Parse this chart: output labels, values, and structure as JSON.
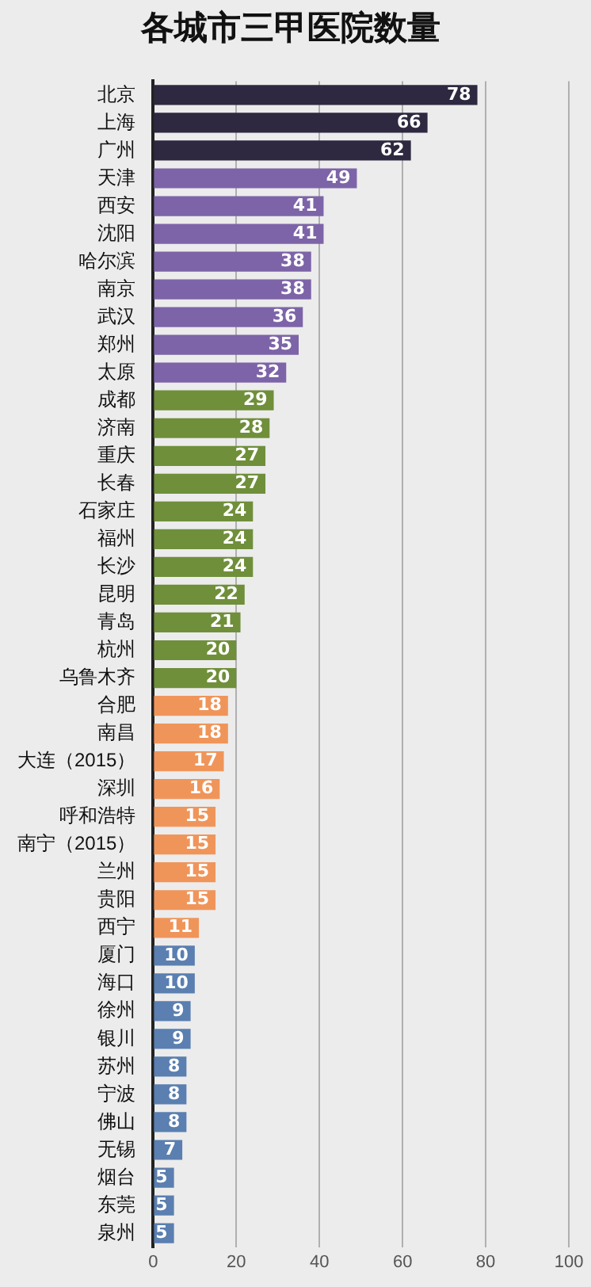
{
  "chart_data": {
    "type": "bar",
    "orientation": "horizontal",
    "title": "各城市三甲医院数量",
    "categories": [
      "北京",
      "上海",
      "广州",
      "天津",
      "西安",
      "沈阳",
      "哈尔滨",
      "南京",
      "武汉",
      "郑州",
      "太原",
      "成都",
      "济南",
      "重庆",
      "长春",
      "石家庄",
      "福州",
      "长沙",
      "昆明",
      "青岛",
      "杭州",
      "乌鲁木齐",
      "合肥",
      "南昌",
      "大连（2015）",
      "深圳",
      "呼和浩特",
      "南宁（2015）",
      "兰州",
      "贵阳",
      "西宁",
      "厦门",
      "海口",
      "徐州",
      "银川",
      "苏州",
      "宁波",
      "佛山",
      "无锡",
      "烟台",
      "东莞",
      "泉州"
    ],
    "values": [
      78,
      66,
      62,
      49,
      41,
      41,
      38,
      38,
      36,
      35,
      32,
      29,
      28,
      27,
      27,
      24,
      24,
      24,
      22,
      21,
      20,
      20,
      18,
      18,
      17,
      16,
      15,
      15,
      15,
      15,
      11,
      10,
      10,
      9,
      9,
      8,
      8,
      8,
      7,
      5,
      5,
      5
    ],
    "colors": [
      "#2e2840",
      "#2e2840",
      "#2e2840",
      "#7d64a8",
      "#7d64a8",
      "#7d64a8",
      "#7d64a8",
      "#7d64a8",
      "#7d64a8",
      "#7d64a8",
      "#7d64a8",
      "#6f8f3a",
      "#6f8f3a",
      "#6f8f3a",
      "#6f8f3a",
      "#6f8f3a",
      "#6f8f3a",
      "#6f8f3a",
      "#6f8f3a",
      "#6f8f3a",
      "#6f8f3a",
      "#6f8f3a",
      "#f0955a",
      "#f0955a",
      "#f0955a",
      "#f0955a",
      "#f0955a",
      "#f0955a",
      "#f0955a",
      "#f0955a",
      "#f0955a",
      "#5a7fb0",
      "#5a7fb0",
      "#5a7fb0",
      "#5a7fb0",
      "#5a7fb0",
      "#5a7fb0",
      "#5a7fb0",
      "#5a7fb0",
      "#5a7fb0",
      "#5a7fb0",
      "#5a7fb0"
    ],
    "xlim": [
      0,
      100
    ],
    "xticks": [
      0,
      20,
      40,
      60,
      80,
      100
    ],
    "grid": "x",
    "data_labels": true,
    "legend": false
  }
}
